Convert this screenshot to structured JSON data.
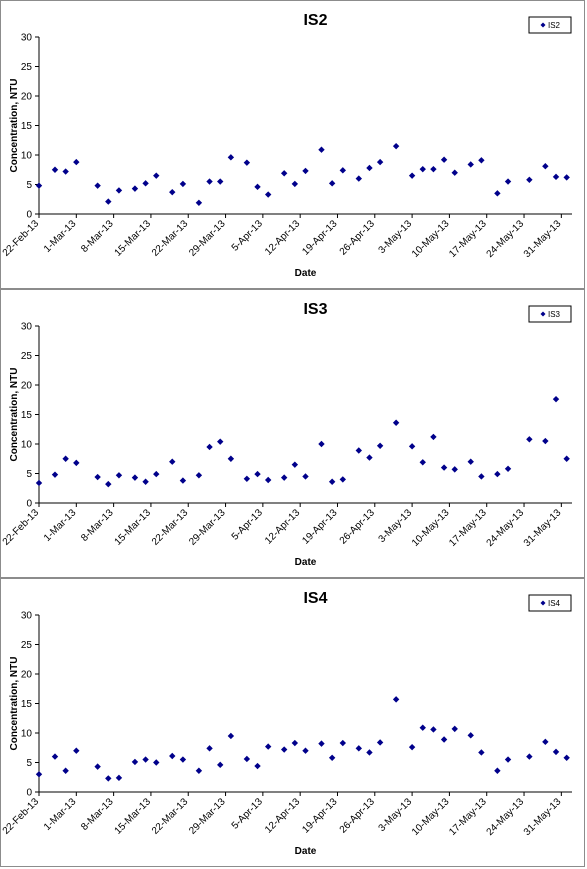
{
  "chart_data": [
    {
      "type": "scatter",
      "title": "IS2",
      "xlabel": "Date",
      "ylabel": "Concentration, NTU",
      "ylim": [
        0,
        30
      ],
      "yticks": [
        0,
        5,
        10,
        15,
        20,
        25,
        30
      ],
      "xlim": [
        "2013-02-22",
        "2013-06-02"
      ],
      "xtick_labels": [
        "22-Feb-13",
        "1-Mar-13",
        "8-Mar-13",
        "15-Mar-13",
        "22-Mar-13",
        "29-Mar-13",
        "5-Apr-13",
        "12-Apr-13",
        "19-Apr-13",
        "26-Apr-13",
        "3-May-13",
        "10-May-13",
        "17-May-13",
        "24-May-13",
        "31-May-13"
      ],
      "grid": false,
      "legend": "top-right",
      "marker_color": "#00008B",
      "series": [
        {
          "name": "IS2",
          "points": [
            {
              "x": "2013-02-22",
              "y": 4.8
            },
            {
              "x": "2013-02-25",
              "y": 7.5
            },
            {
              "x": "2013-02-27",
              "y": 7.2
            },
            {
              "x": "2013-03-01",
              "y": 8.8
            },
            {
              "x": "2013-03-05",
              "y": 4.8
            },
            {
              "x": "2013-03-07",
              "y": 2.1
            },
            {
              "x": "2013-03-09",
              "y": 4.0
            },
            {
              "x": "2013-03-12",
              "y": 4.3
            },
            {
              "x": "2013-03-14",
              "y": 5.2
            },
            {
              "x": "2013-03-16",
              "y": 6.5
            },
            {
              "x": "2013-03-19",
              "y": 3.7
            },
            {
              "x": "2013-03-21",
              "y": 5.1
            },
            {
              "x": "2013-03-24",
              "y": 1.9
            },
            {
              "x": "2013-03-26",
              "y": 5.5
            },
            {
              "x": "2013-03-28",
              "y": 5.5
            },
            {
              "x": "2013-03-30",
              "y": 9.6
            },
            {
              "x": "2013-04-02",
              "y": 8.7
            },
            {
              "x": "2013-04-04",
              "y": 4.6
            },
            {
              "x": "2013-04-06",
              "y": 3.3
            },
            {
              "x": "2013-04-09",
              "y": 6.9
            },
            {
              "x": "2013-04-11",
              "y": 5.1
            },
            {
              "x": "2013-04-13",
              "y": 7.3
            },
            {
              "x": "2013-04-16",
              "y": 10.9
            },
            {
              "x": "2013-04-18",
              "y": 5.2
            },
            {
              "x": "2013-04-20",
              "y": 7.4
            },
            {
              "x": "2013-04-23",
              "y": 6.0
            },
            {
              "x": "2013-04-25",
              "y": 7.8
            },
            {
              "x": "2013-04-27",
              "y": 8.8
            },
            {
              "x": "2013-04-30",
              "y": 11.5
            },
            {
              "x": "2013-05-03",
              "y": 6.5
            },
            {
              "x": "2013-05-05",
              "y": 7.6
            },
            {
              "x": "2013-05-07",
              "y": 7.6
            },
            {
              "x": "2013-05-09",
              "y": 9.2
            },
            {
              "x": "2013-05-11",
              "y": 7.0
            },
            {
              "x": "2013-05-14",
              "y": 8.4
            },
            {
              "x": "2013-05-16",
              "y": 9.1
            },
            {
              "x": "2013-05-19",
              "y": 3.5
            },
            {
              "x": "2013-05-21",
              "y": 5.5
            },
            {
              "x": "2013-05-25",
              "y": 5.8
            },
            {
              "x": "2013-05-28",
              "y": 8.1
            },
            {
              "x": "2013-05-30",
              "y": 6.3
            },
            {
              "x": "2013-06-01",
              "y": 6.2
            }
          ]
        }
      ]
    },
    {
      "type": "scatter",
      "title": "IS3",
      "xlabel": "Date",
      "ylabel": "Concentration, NTU",
      "ylim": [
        0,
        30
      ],
      "yticks": [
        0,
        5,
        10,
        15,
        20,
        25,
        30
      ],
      "xlim": [
        "2013-02-22",
        "2013-06-02"
      ],
      "xtick_labels": [
        "22-Feb-13",
        "1-Mar-13",
        "8-Mar-13",
        "15-Mar-13",
        "22-Mar-13",
        "29-Mar-13",
        "5-Apr-13",
        "12-Apr-13",
        "19-Apr-13",
        "26-Apr-13",
        "3-May-13",
        "10-May-13",
        "17-May-13",
        "24-May-13",
        "31-May-13"
      ],
      "grid": false,
      "legend": "top-right",
      "marker_color": "#00008B",
      "series": [
        {
          "name": "IS3",
          "points": [
            {
              "x": "2013-02-22",
              "y": 3.4
            },
            {
              "x": "2013-02-25",
              "y": 4.8
            },
            {
              "x": "2013-02-27",
              "y": 7.5
            },
            {
              "x": "2013-03-01",
              "y": 6.8
            },
            {
              "x": "2013-03-05",
              "y": 4.4
            },
            {
              "x": "2013-03-07",
              "y": 3.2
            },
            {
              "x": "2013-03-09",
              "y": 4.7
            },
            {
              "x": "2013-03-12",
              "y": 4.3
            },
            {
              "x": "2013-03-14",
              "y": 3.6
            },
            {
              "x": "2013-03-16",
              "y": 4.9
            },
            {
              "x": "2013-03-19",
              "y": 7.0
            },
            {
              "x": "2013-03-21",
              "y": 3.8
            },
            {
              "x": "2013-03-24",
              "y": 4.7
            },
            {
              "x": "2013-03-26",
              "y": 9.5
            },
            {
              "x": "2013-03-28",
              "y": 10.4
            },
            {
              "x": "2013-03-30",
              "y": 7.5
            },
            {
              "x": "2013-04-02",
              "y": 4.1
            },
            {
              "x": "2013-04-04",
              "y": 4.9
            },
            {
              "x": "2013-04-06",
              "y": 3.9
            },
            {
              "x": "2013-04-09",
              "y": 4.3
            },
            {
              "x": "2013-04-11",
              "y": 6.5
            },
            {
              "x": "2013-04-13",
              "y": 4.5
            },
            {
              "x": "2013-04-16",
              "y": 10.0
            },
            {
              "x": "2013-04-18",
              "y": 3.6
            },
            {
              "x": "2013-04-20",
              "y": 4.0
            },
            {
              "x": "2013-04-23",
              "y": 8.9
            },
            {
              "x": "2013-04-25",
              "y": 7.7
            },
            {
              "x": "2013-04-27",
              "y": 9.7
            },
            {
              "x": "2013-04-30",
              "y": 13.6
            },
            {
              "x": "2013-05-03",
              "y": 9.6
            },
            {
              "x": "2013-05-05",
              "y": 6.9
            },
            {
              "x": "2013-05-07",
              "y": 11.2
            },
            {
              "x": "2013-05-09",
              "y": 6.0
            },
            {
              "x": "2013-05-11",
              "y": 5.7
            },
            {
              "x": "2013-05-14",
              "y": 7.0
            },
            {
              "x": "2013-05-16",
              "y": 4.5
            },
            {
              "x": "2013-05-19",
              "y": 4.9
            },
            {
              "x": "2013-05-21",
              "y": 5.8
            },
            {
              "x": "2013-05-25",
              "y": 10.8
            },
            {
              "x": "2013-05-28",
              "y": 10.5
            },
            {
              "x": "2013-05-30",
              "y": 17.6
            },
            {
              "x": "2013-06-01",
              "y": 7.5
            }
          ]
        }
      ]
    },
    {
      "type": "scatter",
      "title": "IS4",
      "xlabel": "Date",
      "ylabel": "Concentration, NTU",
      "ylim": [
        0,
        30
      ],
      "yticks": [
        0,
        5,
        10,
        15,
        20,
        25,
        30
      ],
      "xlim": [
        "2013-02-22",
        "2013-06-02"
      ],
      "xtick_labels": [
        "22-Feb-13",
        "1-Mar-13",
        "8-Mar-13",
        "15-Mar-13",
        "22-Mar-13",
        "29-Mar-13",
        "5-Apr-13",
        "12-Apr-13",
        "19-Apr-13",
        "26-Apr-13",
        "3-May-13",
        "10-May-13",
        "17-May-13",
        "24-May-13",
        "31-May-13"
      ],
      "grid": false,
      "legend": "top-right",
      "marker_color": "#00008B",
      "series": [
        {
          "name": "IS4",
          "points": [
            {
              "x": "2013-02-22",
              "y": 3.0
            },
            {
              "x": "2013-02-25",
              "y": 6.0
            },
            {
              "x": "2013-02-27",
              "y": 3.6
            },
            {
              "x": "2013-03-01",
              "y": 7.0
            },
            {
              "x": "2013-03-05",
              "y": 4.3
            },
            {
              "x": "2013-03-07",
              "y": 2.3
            },
            {
              "x": "2013-03-09",
              "y": 2.4
            },
            {
              "x": "2013-03-12",
              "y": 5.1
            },
            {
              "x": "2013-03-14",
              "y": 5.5
            },
            {
              "x": "2013-03-16",
              "y": 5.0
            },
            {
              "x": "2013-03-19",
              "y": 6.1
            },
            {
              "x": "2013-03-21",
              "y": 5.5
            },
            {
              "x": "2013-03-24",
              "y": 3.6
            },
            {
              "x": "2013-03-26",
              "y": 7.4
            },
            {
              "x": "2013-03-28",
              "y": 4.6
            },
            {
              "x": "2013-03-30",
              "y": 9.5
            },
            {
              "x": "2013-04-02",
              "y": 5.6
            },
            {
              "x": "2013-04-04",
              "y": 4.4
            },
            {
              "x": "2013-04-06",
              "y": 7.7
            },
            {
              "x": "2013-04-09",
              "y": 7.2
            },
            {
              "x": "2013-04-11",
              "y": 8.3
            },
            {
              "x": "2013-04-13",
              "y": 7.0
            },
            {
              "x": "2013-04-16",
              "y": 8.2
            },
            {
              "x": "2013-04-18",
              "y": 5.8
            },
            {
              "x": "2013-04-20",
              "y": 8.3
            },
            {
              "x": "2013-04-23",
              "y": 7.4
            },
            {
              "x": "2013-04-25",
              "y": 6.7
            },
            {
              "x": "2013-04-27",
              "y": 8.4
            },
            {
              "x": "2013-04-30",
              "y": 15.7
            },
            {
              "x": "2013-05-03",
              "y": 7.6
            },
            {
              "x": "2013-05-05",
              "y": 10.9
            },
            {
              "x": "2013-05-07",
              "y": 10.6
            },
            {
              "x": "2013-05-09",
              "y": 8.9
            },
            {
              "x": "2013-05-11",
              "y": 10.7
            },
            {
              "x": "2013-05-14",
              "y": 9.6
            },
            {
              "x": "2013-05-16",
              "y": 6.7
            },
            {
              "x": "2013-05-19",
              "y": 3.6
            },
            {
              "x": "2013-05-21",
              "y": 5.5
            },
            {
              "x": "2013-05-25",
              "y": 6.0
            },
            {
              "x": "2013-05-28",
              "y": 8.5
            },
            {
              "x": "2013-05-30",
              "y": 6.8
            },
            {
              "x": "2013-06-01",
              "y": 5.8
            }
          ]
        }
      ]
    }
  ]
}
